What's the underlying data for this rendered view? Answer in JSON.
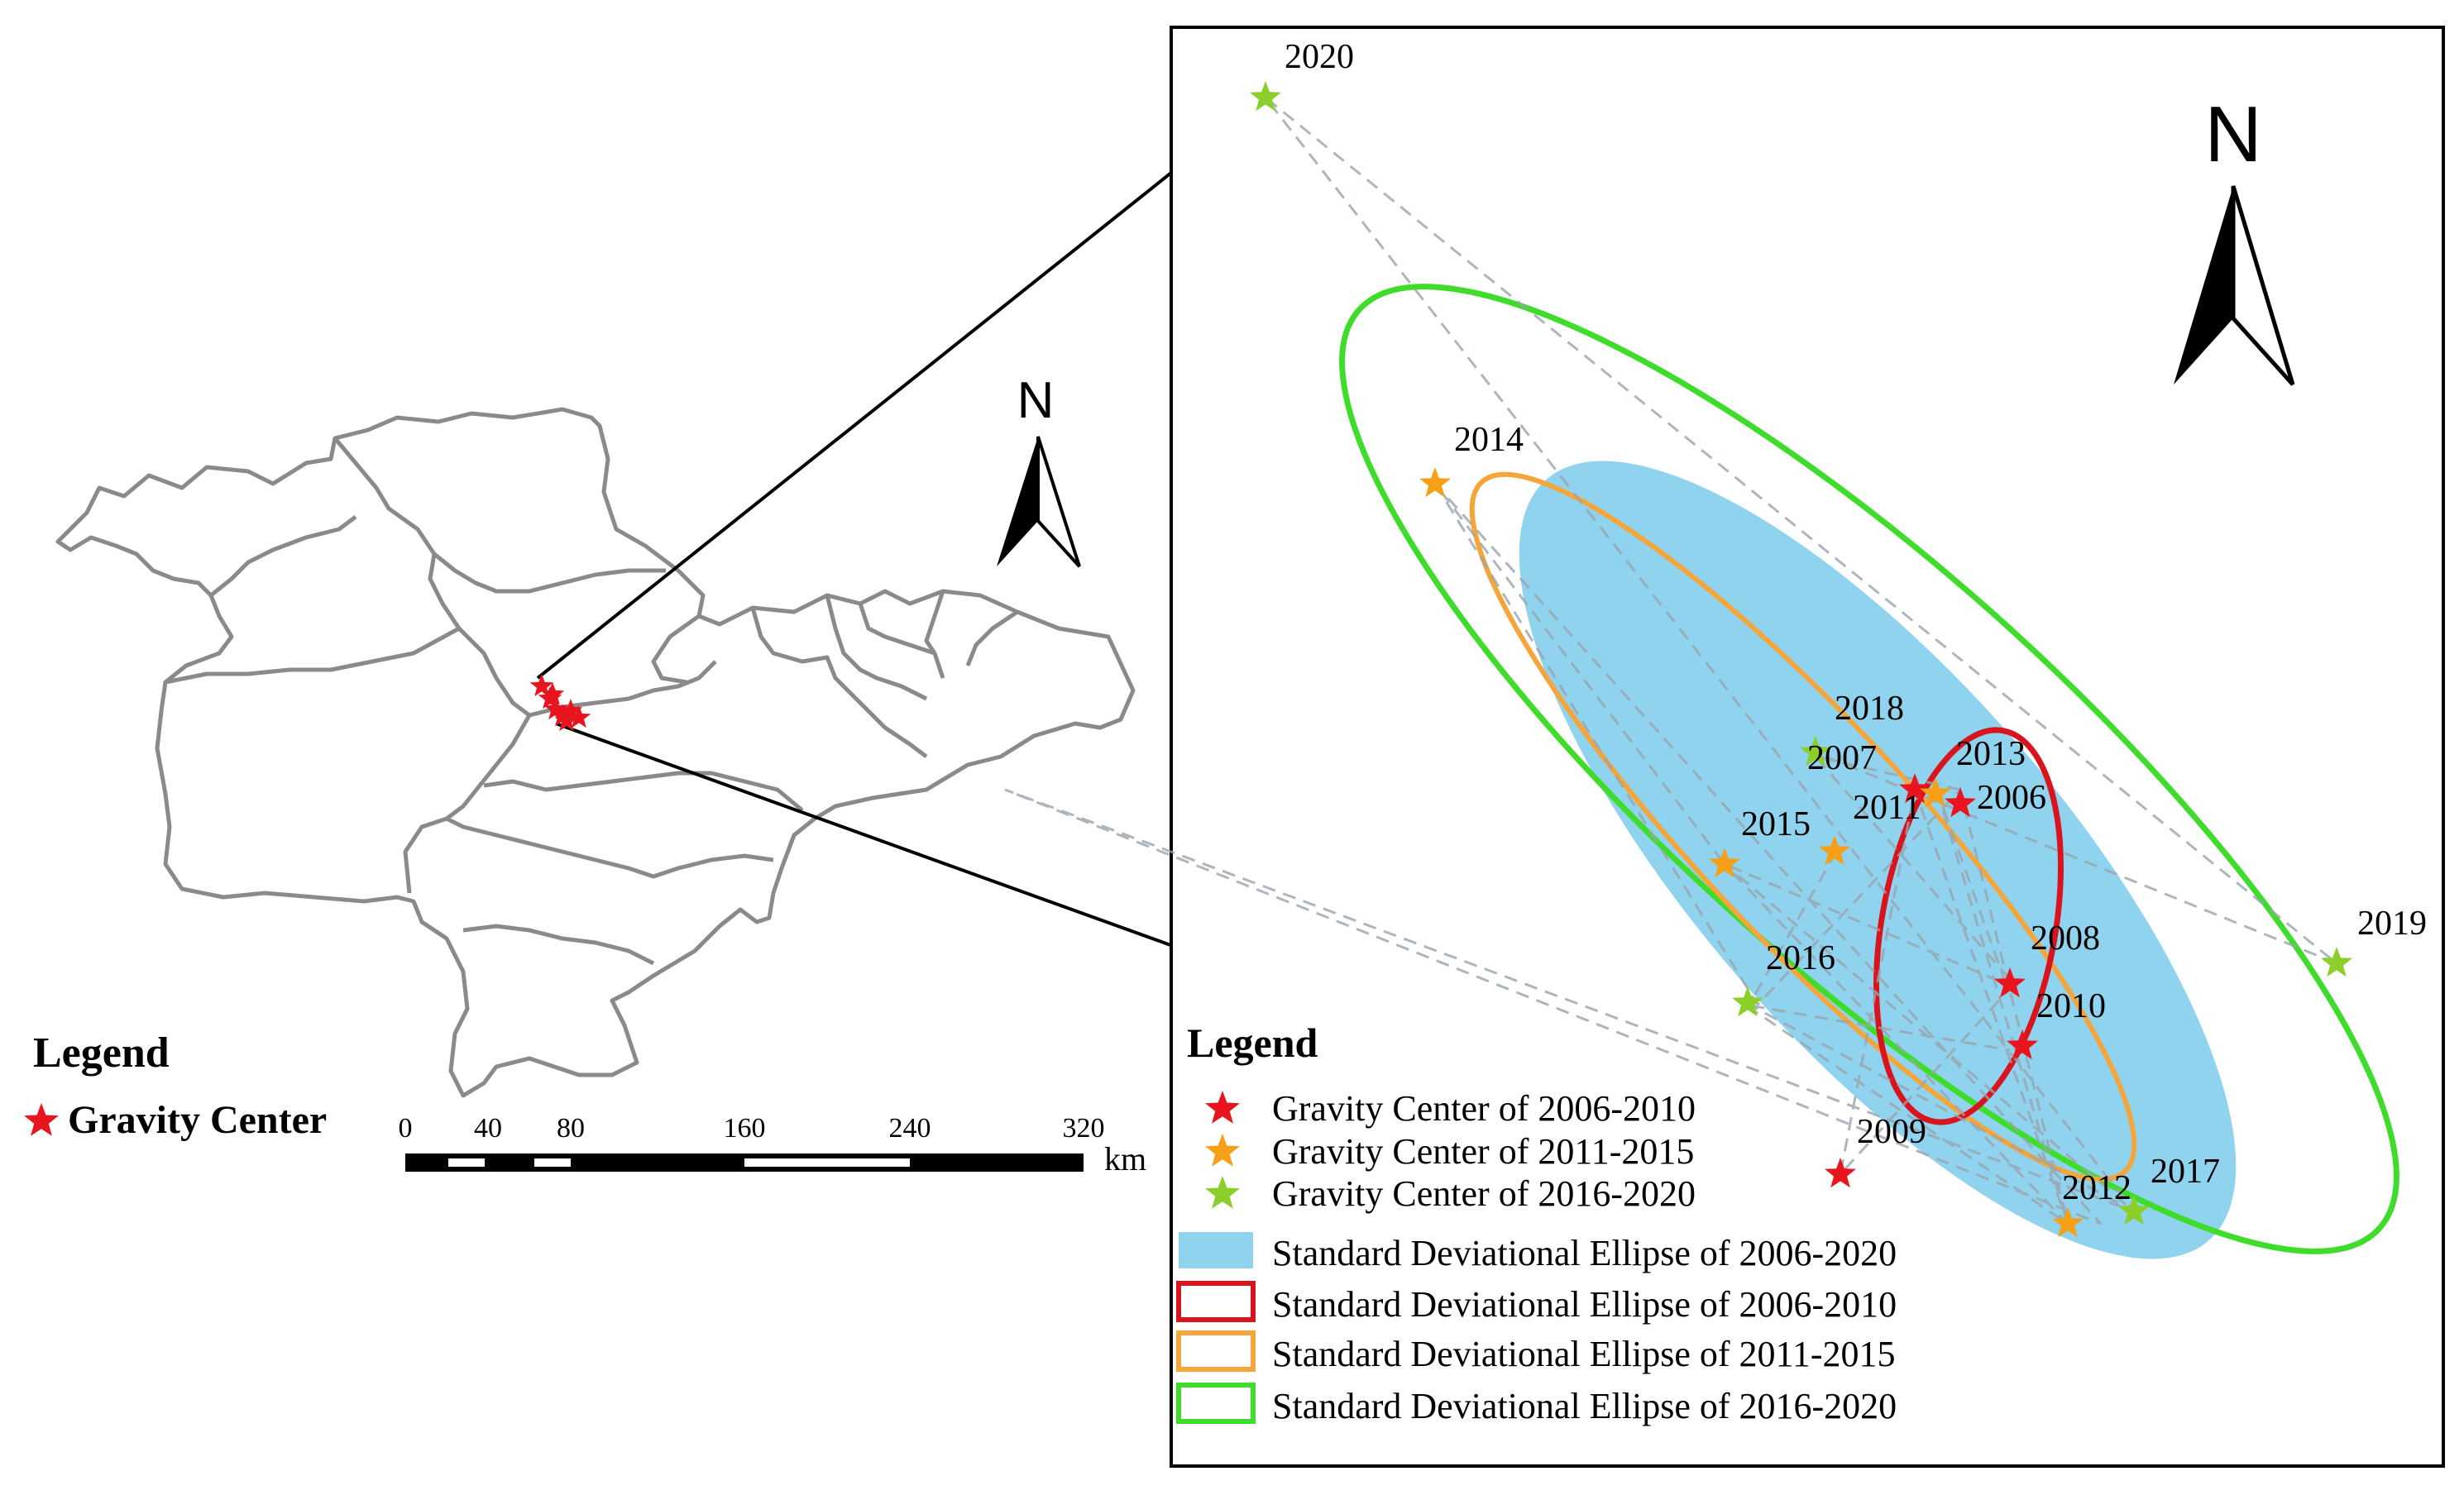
{
  "overview_map": {
    "legend_title": "Legend",
    "legend_items": [
      {
        "symbol": "star",
        "color": "#e8141e",
        "label": "Gravity Center"
      }
    ],
    "north_label": "N",
    "scale_bar": {
      "ticks": [
        "0",
        "40",
        "80",
        "160",
        "240",
        "320"
      ],
      "unit": "km"
    }
  },
  "inset_map": {
    "north_label": "N",
    "legend_title": "Legend",
    "legend_items": [
      {
        "symbol": "star",
        "color": "#e8141e",
        "label": "Gravity Center of 2006-2010"
      },
      {
        "symbol": "star",
        "color": "#f5a017",
        "label": "Gravity Center of 2011-2015"
      },
      {
        "symbol": "star",
        "color": "#8ccf2b",
        "label": "Gravity Center of 2016-2020"
      },
      {
        "symbol": "filled-rect",
        "color": "#8fd3ee",
        "label": "Standard Deviational Ellipse of 2006-2020"
      },
      {
        "symbol": "outline-rect",
        "color": "#d8141e",
        "label": "Standard Deviational Ellipse of 2006-2010"
      },
      {
        "symbol": "outline-rect",
        "color": "#f5a53a",
        "label": "Standard Deviational Ellipse of 2011-2015"
      },
      {
        "symbol": "outline-rect",
        "color": "#3fdc2c",
        "label": "Standard Deviational Ellipse of 2016-2020"
      }
    ],
    "gravity_centers": [
      {
        "year": "2006",
        "period": "2006-2010"
      },
      {
        "year": "2007",
        "period": "2006-2010"
      },
      {
        "year": "2008",
        "period": "2006-2010"
      },
      {
        "year": "2009",
        "period": "2006-2010"
      },
      {
        "year": "2010",
        "period": "2006-2010"
      },
      {
        "year": "2011",
        "period": "2011-2015"
      },
      {
        "year": "2012",
        "period": "2011-2015"
      },
      {
        "year": "2013",
        "period": "2011-2015"
      },
      {
        "year": "2014",
        "period": "2011-2015"
      },
      {
        "year": "2015",
        "period": "2011-2015"
      },
      {
        "year": "2016",
        "period": "2016-2020"
      },
      {
        "year": "2017",
        "period": "2016-2020"
      },
      {
        "year": "2018",
        "period": "2016-2020"
      },
      {
        "year": "2019",
        "period": "2016-2020"
      },
      {
        "year": "2020",
        "period": "2016-2020"
      }
    ]
  }
}
